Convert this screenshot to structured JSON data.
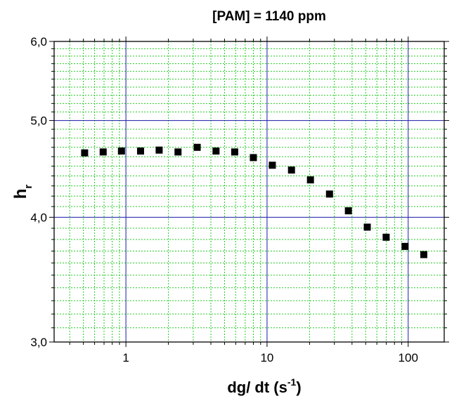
{
  "chart_data": {
    "type": "scatter",
    "title": "[PAM] = 1140 ppm",
    "xlabel": {
      "main": "dg/ dt  (s",
      "sup": "-1",
      "tail": ")"
    },
    "ylabel": {
      "main": "h",
      "sub": "r"
    },
    "xscale": "log",
    "yscale": "log",
    "xlim": [
      0.31,
      180
    ],
    "ylim": [
      3.0,
      6.0
    ],
    "x_ticks": [
      {
        "value": 1,
        "label": "1"
      },
      {
        "value": 10,
        "label": "10"
      },
      {
        "value": 100,
        "label": "100"
      }
    ],
    "y_ticks": [
      {
        "value": 3.0,
        "label": "3,0"
      },
      {
        "value": 4.0,
        "label": "4,0"
      },
      {
        "value": 5.0,
        "label": "5,0"
      },
      {
        "value": 6.0,
        "label": "6,0"
      }
    ],
    "grid": "major and minor",
    "colors": {
      "major_grid": "#1a1aa8",
      "minor_grid": "#22cc22",
      "marker": "#000000"
    },
    "marker": "square",
    "series": [
      {
        "x": [
          0.51,
          0.69,
          0.93,
          1.27,
          1.72,
          2.34,
          3.2,
          4.35,
          5.9,
          8.0,
          10.9,
          14.9,
          20.3,
          27.7,
          37.7,
          51.3,
          69.8,
          95.0,
          129.0
        ],
        "y": [
          4.64,
          4.65,
          4.66,
          4.66,
          4.67,
          4.65,
          4.7,
          4.66,
          4.65,
          4.59,
          4.51,
          4.46,
          4.36,
          4.22,
          4.06,
          3.91,
          3.82,
          3.74,
          3.67
        ]
      }
    ]
  }
}
